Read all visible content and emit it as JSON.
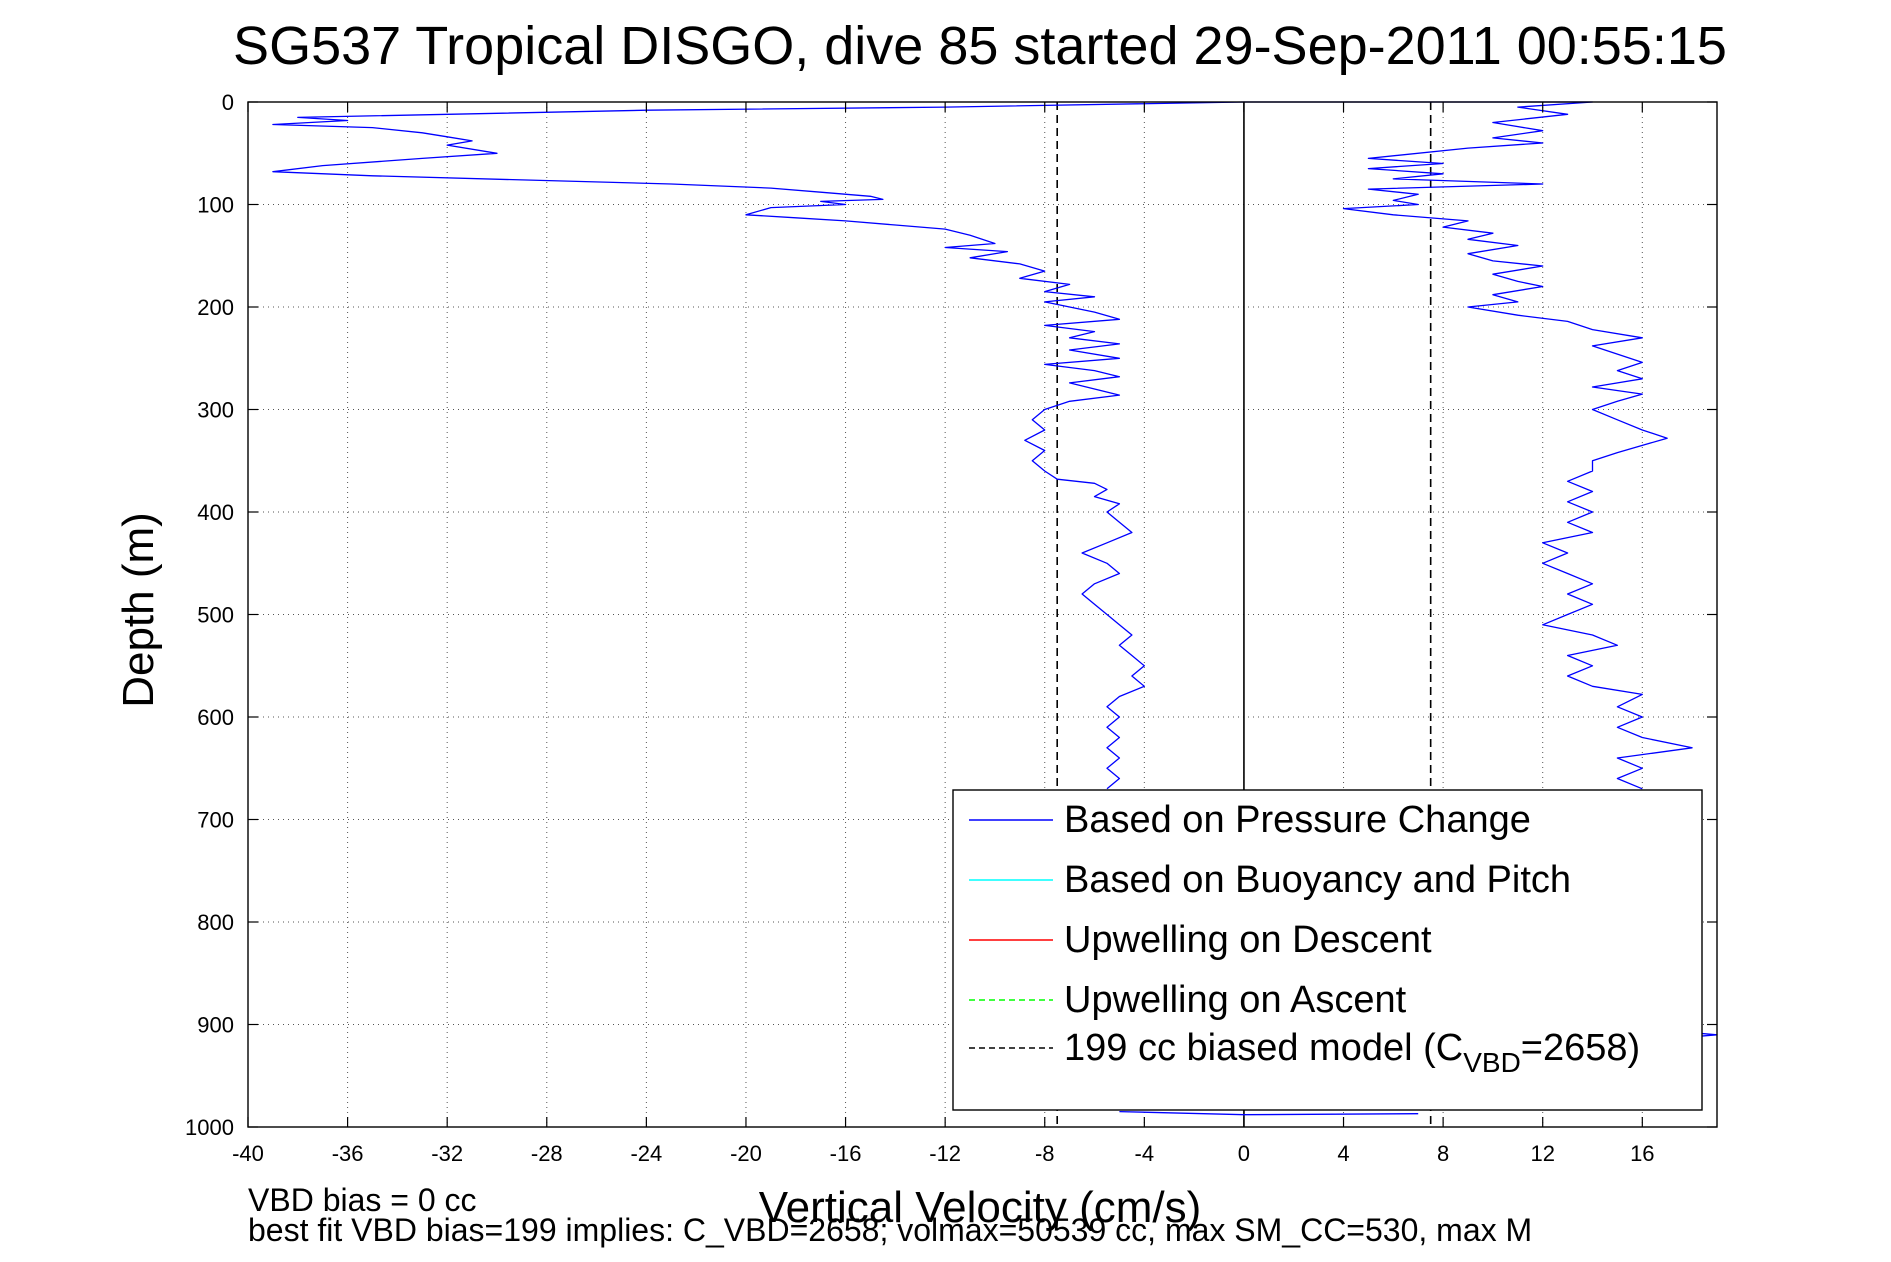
{
  "chart_data": {
    "type": "line",
    "title": "SG537 Tropical DISGO, dive 85 started 29-Sep-2011 00:55:15",
    "xlabel": "Vertical Velocity (cm/s)",
    "ylabel": "Depth (m)",
    "xlim": [
      -40,
      19
    ],
    "ylim": [
      1000,
      0
    ],
    "y_reversed": true,
    "grid": true,
    "legend_position": "bottom-right",
    "x_ticks": [
      "-40",
      "-36",
      "-32",
      "-28",
      "-24",
      "-20",
      "-16",
      "-12",
      "-8",
      "-4",
      "0",
      "4",
      "8",
      "12",
      "16"
    ],
    "y_ticks": [
      "0",
      "100",
      "200",
      "300",
      "400",
      "500",
      "600",
      "700",
      "800",
      "900",
      "1000"
    ],
    "legend": [
      {
        "label": "Based on Pressure Change",
        "color": "#0000ff",
        "style": "solid"
      },
      {
        "label": "Based on Buoyancy and Pitch",
        "color": "#00ffff",
        "style": "solid"
      },
      {
        "label": "Upwelling on Descent",
        "color": "#ff0000",
        "style": "solid"
      },
      {
        "label": "Upwelling on Ascent",
        "color": "#00ff00",
        "style": "dashed"
      },
      {
        "label_main": "199 cc biased model (C",
        "label_sub": "VBD",
        "label_tail": "=2658)",
        "color": "#000000",
        "style": "dashed"
      }
    ],
    "reference_lines": [
      {
        "name": "zero",
        "x": 0,
        "style": "solid",
        "color": "#000000"
      },
      {
        "name": "model-descent",
        "x": -7.5,
        "style": "dashed",
        "color": "#000000"
      },
      {
        "name": "model-ascent",
        "x": 7.5,
        "style": "dashed",
        "color": "#000000"
      }
    ],
    "series": [
      {
        "color": "#0000ff",
        "segment": "descent",
        "points": [
          [
            0,
            0
          ],
          [
            -12,
            5
          ],
          [
            -24,
            8
          ],
          [
            -38,
            15
          ],
          [
            -36,
            18
          ],
          [
            -39,
            22
          ],
          [
            -35,
            25
          ],
          [
            -33,
            30
          ],
          [
            -32,
            34
          ],
          [
            -31,
            38
          ],
          [
            -32,
            42
          ],
          [
            -30,
            50
          ],
          [
            -33,
            55
          ],
          [
            -37,
            62
          ],
          [
            -39,
            68
          ],
          [
            -35,
            72
          ],
          [
            -29,
            76
          ],
          [
            -23,
            80
          ],
          [
            -19,
            84
          ],
          [
            -17,
            88
          ],
          [
            -15,
            92
          ],
          [
            -14.5,
            95
          ],
          [
            -17,
            97
          ],
          [
            -16,
            100
          ],
          [
            -19,
            103
          ],
          [
            -20,
            110
          ],
          [
            -18,
            113
          ],
          [
            -16,
            116
          ],
          [
            -14,
            120
          ],
          [
            -12,
            124
          ],
          [
            -11,
            130
          ],
          [
            -10,
            138
          ],
          [
            -12,
            142
          ],
          [
            -9.5,
            146
          ],
          [
            -11,
            152
          ],
          [
            -9,
            158
          ],
          [
            -8,
            165
          ],
          [
            -9,
            172
          ],
          [
            -7,
            178
          ],
          [
            -8,
            185
          ],
          [
            -6,
            190
          ],
          [
            -8,
            195
          ],
          [
            -7,
            200
          ],
          [
            -6,
            205
          ],
          [
            -5,
            212
          ],
          [
            -8,
            218
          ],
          [
            -6,
            224
          ],
          [
            -7,
            230
          ],
          [
            -5,
            236
          ],
          [
            -7,
            242
          ],
          [
            -5,
            250
          ],
          [
            -8,
            256
          ],
          [
            -6,
            262
          ],
          [
            -5,
            268
          ],
          [
            -7,
            274
          ],
          [
            -6,
            280
          ],
          [
            -5,
            286
          ],
          [
            -7,
            292
          ],
          [
            -8,
            300
          ],
          [
            -8.5,
            310
          ],
          [
            -8,
            320
          ],
          [
            -8.8,
            330
          ],
          [
            -8,
            340
          ],
          [
            -8.5,
            350
          ],
          [
            -8,
            360
          ],
          [
            -7.5,
            368
          ],
          [
            -6,
            372
          ],
          [
            -5.5,
            378
          ],
          [
            -6,
            385
          ],
          [
            -5,
            392
          ],
          [
            -5.5,
            400
          ],
          [
            -5,
            410
          ],
          [
            -4.5,
            420
          ],
          [
            -5.5,
            430
          ],
          [
            -6.5,
            440
          ],
          [
            -5.5,
            450
          ],
          [
            -5,
            460
          ],
          [
            -6,
            470
          ],
          [
            -6.5,
            480
          ],
          [
            -6,
            490
          ],
          [
            -5.5,
            500
          ],
          [
            -5,
            510
          ],
          [
            -4.5,
            520
          ],
          [
            -5,
            530
          ],
          [
            -4.5,
            540
          ],
          [
            -4,
            550
          ],
          [
            -4.5,
            560
          ],
          [
            -4,
            570
          ],
          [
            -5,
            580
          ],
          [
            -5.5,
            590
          ],
          [
            -5,
            600
          ],
          [
            -5.5,
            610
          ],
          [
            -5,
            620
          ],
          [
            -5.5,
            630
          ],
          [
            -5,
            640
          ],
          [
            -5.5,
            650
          ],
          [
            -5,
            660
          ],
          [
            -5.5,
            670
          ]
        ]
      },
      {
        "color": "#0000ff",
        "segment": "ascent",
        "points": [
          [
            0,
            0
          ],
          [
            14,
            0
          ],
          [
            11,
            5
          ],
          [
            13,
            12
          ],
          [
            10,
            20
          ],
          [
            12,
            28
          ],
          [
            10,
            35
          ],
          [
            12,
            40
          ],
          [
            9,
            45
          ],
          [
            5,
            55
          ],
          [
            8,
            60
          ],
          [
            5,
            65
          ],
          [
            8,
            70
          ],
          [
            6,
            75
          ],
          [
            12,
            80
          ],
          [
            5,
            85
          ],
          [
            7,
            90
          ],
          [
            6,
            96
          ],
          [
            7,
            100
          ],
          [
            4,
            104
          ],
          [
            6,
            110
          ],
          [
            9,
            116
          ],
          [
            8,
            122
          ],
          [
            10,
            128
          ],
          [
            9,
            134
          ],
          [
            11,
            140
          ],
          [
            9,
            148
          ],
          [
            10,
            155
          ],
          [
            12,
            160
          ],
          [
            10,
            168
          ],
          [
            11,
            175
          ],
          [
            12,
            180
          ],
          [
            10,
            188
          ],
          [
            11,
            195
          ],
          [
            9,
            200
          ],
          [
            11,
            208
          ],
          [
            13,
            214
          ],
          [
            14,
            222
          ],
          [
            16,
            230
          ],
          [
            14,
            238
          ],
          [
            15,
            246
          ],
          [
            16,
            254
          ],
          [
            15,
            262
          ],
          [
            16,
            270
          ],
          [
            14,
            278
          ],
          [
            16,
            285
          ],
          [
            15,
            292
          ],
          [
            14,
            300
          ],
          [
            15,
            310
          ],
          [
            16,
            320
          ],
          [
            17,
            328
          ],
          [
            16,
            335
          ],
          [
            15,
            342
          ],
          [
            14,
            350
          ],
          [
            14,
            360
          ],
          [
            13,
            370
          ],
          [
            14,
            380
          ],
          [
            13,
            390
          ],
          [
            14,
            400
          ],
          [
            13,
            410
          ],
          [
            14,
            420
          ],
          [
            12,
            430
          ],
          [
            13,
            440
          ],
          [
            12,
            450
          ],
          [
            13,
            460
          ],
          [
            14,
            470
          ],
          [
            13,
            480
          ],
          [
            14,
            490
          ],
          [
            13,
            500
          ],
          [
            12,
            510
          ],
          [
            14,
            520
          ],
          [
            15,
            530
          ],
          [
            13,
            540
          ],
          [
            14,
            550
          ],
          [
            13,
            560
          ],
          [
            14,
            570
          ],
          [
            16,
            578
          ],
          [
            15,
            590
          ],
          [
            16,
            600
          ],
          [
            15,
            610
          ],
          [
            16,
            620
          ],
          [
            18,
            630
          ],
          [
            15,
            640
          ],
          [
            16,
            650
          ],
          [
            15,
            660
          ],
          [
            16,
            670
          ]
        ]
      },
      {
        "color": "#0000ff",
        "segment": "bottom-turn",
        "points": [
          [
            -5,
            985
          ],
          [
            0,
            988
          ],
          [
            7,
            987
          ]
        ]
      },
      {
        "color": "#0000ff",
        "segment": "ascent-deep",
        "points": [
          [
            18,
            908
          ],
          [
            19,
            910
          ],
          [
            18,
            912
          ]
        ]
      }
    ]
  },
  "footer": {
    "line1": "VBD bias = 0 cc",
    "line2": "best fit VBD bias=199 implies: C_VBD=2658; volmax=50539 cc, max SM_CC=530, max M"
  }
}
